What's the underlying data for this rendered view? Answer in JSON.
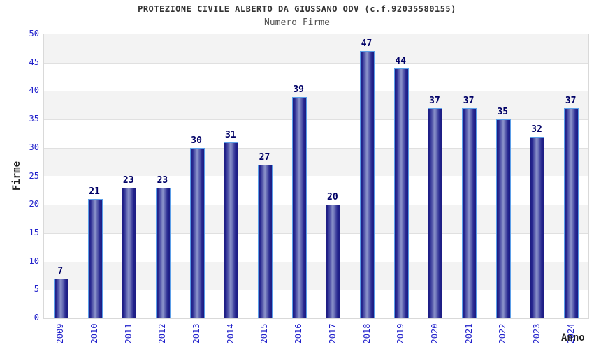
{
  "chart_data": {
    "type": "bar",
    "title": "PROTEZIONE CIVILE ALBERTO DA GIUSSANO ODV (c.f.92035580155)",
    "subtitle": "Numero Firme",
    "xlabel": "Anno",
    "ylabel": "Firme",
    "categories": [
      "2009",
      "2010",
      "2011",
      "2012",
      "2013",
      "2014",
      "2015",
      "2016",
      "2017",
      "2018",
      "2019",
      "2020",
      "2021",
      "2022",
      "2023",
      "2024"
    ],
    "values": [
      7,
      21,
      23,
      23,
      30,
      31,
      27,
      39,
      20,
      47,
      44,
      37,
      37,
      35,
      32,
      37
    ],
    "ylim": [
      0,
      50
    ],
    "ytick_step": 5,
    "grid": true,
    "legend": "none",
    "style": {
      "background": "#ffffff",
      "title_color": "#333333",
      "subtitle_color": "#555555",
      "tick_label_color": "#2222cc",
      "value_label_color": "#000066",
      "axis_title_color": "#222222",
      "band_color_odd": "#f3f3f3",
      "band_color_even": "#ffffff",
      "gridline_color": "#e0e0e0",
      "plot_border_color": "#d9d9d9",
      "bar_border_color": "#5b9ee8",
      "bar_edge_color": "#1d1d82",
      "bar_inner_color": "#24248e",
      "bar_highlight_color": "#8d95cb"
    }
  }
}
